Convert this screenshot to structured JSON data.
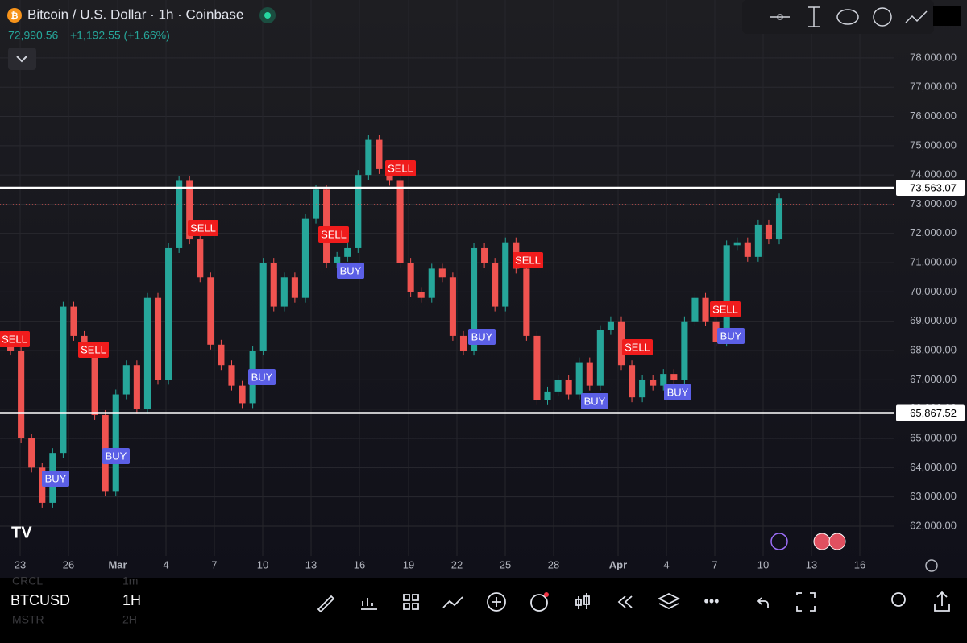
{
  "header": {
    "symbol": "Bitcoin / U.S. Dollar · 1h · Coinbase",
    "last": "72,990.56",
    "change": "+1,192.55 (+1.66%)"
  },
  "chart_data": {
    "type": "candlestick",
    "close": [
      68300,
      68000,
      65000,
      64000,
      62800,
      64500,
      69500,
      68500,
      68000,
      65800,
      63200,
      66500,
      67500,
      66000,
      69800,
      67000,
      71500,
      73800,
      71800,
      70500,
      68200,
      67500,
      66800,
      66200,
      68000,
      71000,
      69500,
      70500,
      69800,
      72500,
      73500,
      71000,
      71200,
      71500,
      74000,
      75200,
      74200,
      73800,
      71000,
      70000,
      69800,
      70800,
      70500,
      68500,
      68000,
      71500,
      71000,
      69500,
      71700,
      70800,
      68500,
      66300,
      66600,
      67000,
      66500,
      67600,
      66800,
      68700,
      69000,
      67500,
      66400,
      67000,
      66800,
      67200,
      67000,
      69000,
      69800,
      69000,
      68300,
      71600,
      71700,
      71200,
      72300,
      71800,
      73200
    ],
    "up_color": "#26a69a",
    "down_color": "#ef5350",
    "ylim": [
      60980,
      79980
    ],
    "yticks": [
      {
        "value": 62000,
        "label": "62,000.00"
      },
      {
        "value": 63000,
        "label": "63,000.00"
      },
      {
        "value": 64000,
        "label": "64,000.00"
      },
      {
        "value": 65000,
        "label": "65,000.00"
      },
      {
        "value": 66000,
        "label": "66,000.00"
      },
      {
        "value": 67000,
        "label": "67,000.00"
      },
      {
        "value": 68000,
        "label": "68,000.00"
      },
      {
        "value": 69000,
        "label": "69,000.00"
      },
      {
        "value": 70000,
        "label": "70,000.00"
      },
      {
        "value": 71000,
        "label": "71,000.00"
      },
      {
        "value": 72000,
        "label": "72,000.00"
      },
      {
        "value": 73000,
        "label": "73,000.00"
      },
      {
        "value": 74000,
        "label": "74,000.00"
      },
      {
        "value": 75000,
        "label": "75,000.00"
      },
      {
        "value": 76000,
        "label": "76,000.00"
      },
      {
        "value": 77000,
        "label": "77,000.00"
      },
      {
        "value": 78000,
        "label": "78,000.00"
      }
    ],
    "xticks": [
      "23",
      "26",
      "Mar",
      "4",
      "7",
      "10",
      "13",
      "16",
      "19",
      "22",
      "25",
      "28",
      "Apr",
      "4",
      "7",
      "10",
      "13",
      "16"
    ],
    "levels": [
      {
        "value": 73563.07,
        "label": "73,563.07"
      },
      {
        "value": 65867.52,
        "label": "65,867.52"
      }
    ],
    "last_price": 72990.56,
    "grid": true,
    "signals": [
      "SELL",
      "SELL",
      "BUY",
      "BUY",
      "SELL",
      "BUY",
      "SELL",
      "BUY",
      "SELL",
      "BUY",
      "SELL",
      "BUY",
      "SELL",
      "BUY",
      "SELL",
      "BUY"
    ]
  },
  "toolbar": {
    "symbol": "BTCUSD",
    "interval": "1H",
    "watch": [
      [
        "CRCL",
        "1m"
      ],
      [
        "MSTR",
        "2H"
      ]
    ]
  }
}
